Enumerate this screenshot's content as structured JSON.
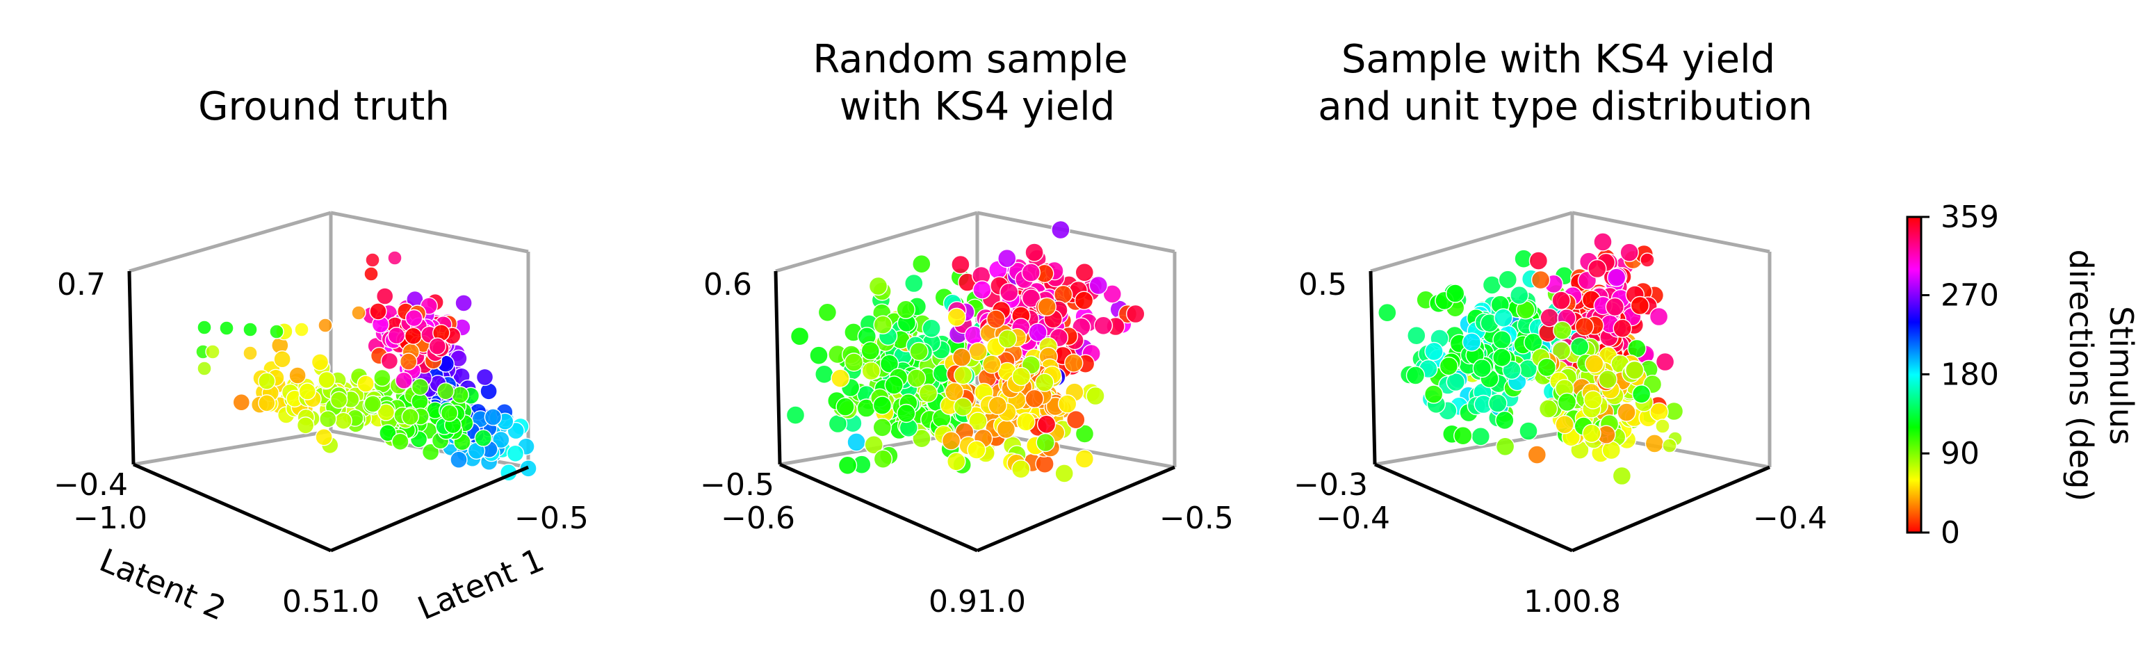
{
  "chart_data": [
    {
      "type": "scatter",
      "subtype": "3d",
      "title": "Ground truth",
      "xlabel": "Latent 1",
      "ylabel": "Latent 2",
      "zlabel": "",
      "tick_labels": {
        "z_top": "0.7",
        "z_bottom": "−0.4",
        "y_left": "−1.0",
        "x_right": "−0.5",
        "front_corner": "0.51.0"
      },
      "color_by": "Stimulus directions (deg)",
      "clusters": [
        {
          "name": "cyan-blue ridge",
          "approx_hue_range_deg": [
            180,
            300
          ]
        },
        {
          "name": "green-yellow tail",
          "approx_hue_range_deg": [
            40,
            150
          ]
        },
        {
          "name": "red-magenta tip",
          "approx_hue_range_deg": [
            300,
            359
          ]
        }
      ]
    },
    {
      "type": "scatter",
      "subtype": "3d",
      "title": "Random sample\nwith KS4 yield",
      "tick_labels": {
        "z_top": "0.6",
        "z_bottom": "−0.5",
        "y_left": "−0.6",
        "x_right": "−0.5",
        "front_corner": "0.91.0"
      },
      "color_by": "Stimulus directions (deg)"
    },
    {
      "type": "scatter",
      "subtype": "3d",
      "title": "Sample with KS4 yield\nand unit type distribution",
      "tick_labels": {
        "z_top": "0.5",
        "z_bottom": "−0.3",
        "y_left": "−0.4",
        "x_right": "−0.4",
        "front_corner": "1.00.8"
      },
      "color_by": "Stimulus directions (deg)"
    }
  ],
  "colorbar": {
    "label_line1": "Stimulus",
    "label_line2": "directions (deg)",
    "ticks": [
      "359",
      "270",
      "180",
      "90",
      "0"
    ],
    "tick_values": [
      359,
      270,
      180,
      90,
      0
    ],
    "range": [
      0,
      359
    ],
    "colormap": "hsv"
  },
  "colors": {
    "back_axes": "#aaaaaa",
    "front_axes": "#000000"
  }
}
